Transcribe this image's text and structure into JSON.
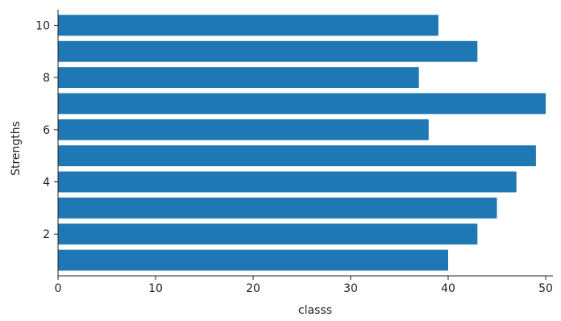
{
  "chart_data": {
    "type": "bar",
    "orientation": "horizontal",
    "title": "",
    "xlabel": "classs",
    "ylabel": "Strengths",
    "x": [
      1,
      2,
      3,
      4,
      5,
      6,
      7,
      8,
      9,
      10
    ],
    "values": [
      40,
      43,
      45,
      47,
      49,
      38,
      50,
      37,
      43,
      39
    ],
    "xlim": [
      0,
      50
    ],
    "ylim": [
      0.4,
      10.6
    ],
    "xticks": [
      0,
      10,
      20,
      30,
      40,
      50
    ],
    "yticks": [
      2,
      4,
      6,
      8,
      10
    ],
    "bar_color": "#1f77b4",
    "grid": false,
    "legend": "none"
  }
}
